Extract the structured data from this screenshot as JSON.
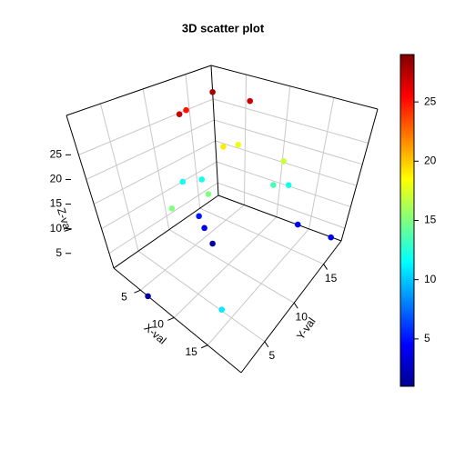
{
  "chart_data": {
    "type": "scatter3d",
    "title": "3D scatter plot",
    "xlabel": "X-val",
    "ylabel": "Y-val",
    "zlabel": "Z-val",
    "x": [
      2,
      1,
      2.6,
      5.5,
      5.1,
      5.4,
      11,
      2.3,
      3.5,
      12,
      7.5,
      6.4,
      11.2,
      3.7,
      5,
      6.4,
      14,
      19,
      6.1,
      17.3
    ],
    "y": [
      17,
      14.6,
      12.2,
      18,
      14.9,
      16.6,
      17,
      11.8,
      13.3,
      17,
      10.1,
      6.1,
      15.5,
      12.2,
      11.6,
      11.3,
      17,
      17,
      1,
      1
    ],
    "z": [
      28,
      25,
      27,
      27,
      19,
      18,
      17,
      12,
      12,
      12,
      15,
      15,
      13.5,
      5,
      4,
      2,
      4,
      4,
      2,
      11
    ],
    "xlim": [
      1,
      20
    ],
    "ylim": [
      1,
      18
    ],
    "zlim": [
      2,
      33
    ],
    "xticks": [
      5,
      10,
      15
    ],
    "yticks": [
      5,
      10,
      15
    ],
    "zticks": [
      5,
      10,
      15,
      20,
      25
    ],
    "colormap": "jet",
    "clim": [
      1,
      29
    ],
    "cticks": [
      5,
      10,
      15,
      20,
      25
    ],
    "grid": true
  }
}
